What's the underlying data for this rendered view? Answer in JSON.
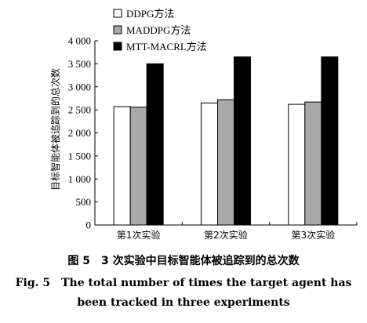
{
  "chart_data": {
    "type": "bar",
    "categories": [
      "第1次实验",
      "第2次实验",
      "第3次实验"
    ],
    "series": [
      {
        "name": "DDPG方法",
        "values": [
          2570,
          2650,
          2620
        ],
        "color": "#ffffff"
      },
      {
        "name": "MADDPG方法",
        "values": [
          2560,
          2720,
          2670
        ],
        "color": "#a9a9a9"
      },
      {
        "name": "MTT-MACRL方法",
        "values": [
          3500,
          3650,
          3650
        ],
        "color": "#000000"
      }
    ],
    "ylabel": "目标智能体被追踪到的总次数",
    "ylim": [
      0,
      4000
    ],
    "yticks": [
      0,
      500,
      1000,
      1500,
      2000,
      2500,
      3000,
      3500,
      4000
    ],
    "ytick_labels": [
      "0",
      "500",
      "1 000",
      "1 500",
      "2 000",
      "2 500",
      "3 000",
      "3 500",
      "4 000"
    ],
    "legend_position": "top-left",
    "grid": false
  },
  "caption": {
    "cn": "图 5　3 次实验中目标智能体被追踪到的总次数",
    "en_line1": "Fig. 5　The total number of times the target agent has",
    "en_line2": "been tracked in three experiments"
  }
}
